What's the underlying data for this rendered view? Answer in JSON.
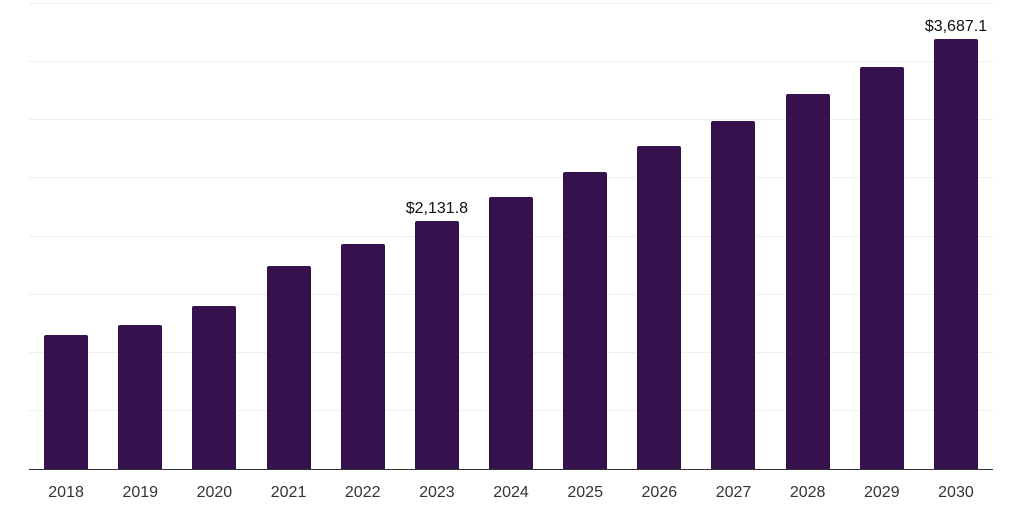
{
  "chart_data": {
    "type": "bar",
    "title": "",
    "xlabel": "",
    "ylabel": "",
    "categories": [
      "2018",
      "2019",
      "2020",
      "2021",
      "2022",
      "2023",
      "2024",
      "2025",
      "2026",
      "2027",
      "2028",
      "2029",
      "2030"
    ],
    "values": [
      1150,
      1235,
      1400,
      1740,
      1935,
      2131.8,
      2335,
      2550,
      2775,
      2990,
      3220,
      3455,
      3687.1
    ],
    "point_labels": [
      "",
      "",
      "",
      "",
      "",
      "$2,131.8",
      "",
      "",
      "",
      "",
      "",
      "",
      "$3,687.1"
    ],
    "ylim": [
      0,
      4000
    ],
    "grid_step": 500,
    "grid": true,
    "legend": false,
    "y_axis_labels_visible": false,
    "colors": {
      "bar": "#35114D",
      "grid": "#efefef",
      "axis": "#333333",
      "value_label": "#111111",
      "tick_label": "#333333",
      "background": "#ffffff"
    }
  }
}
